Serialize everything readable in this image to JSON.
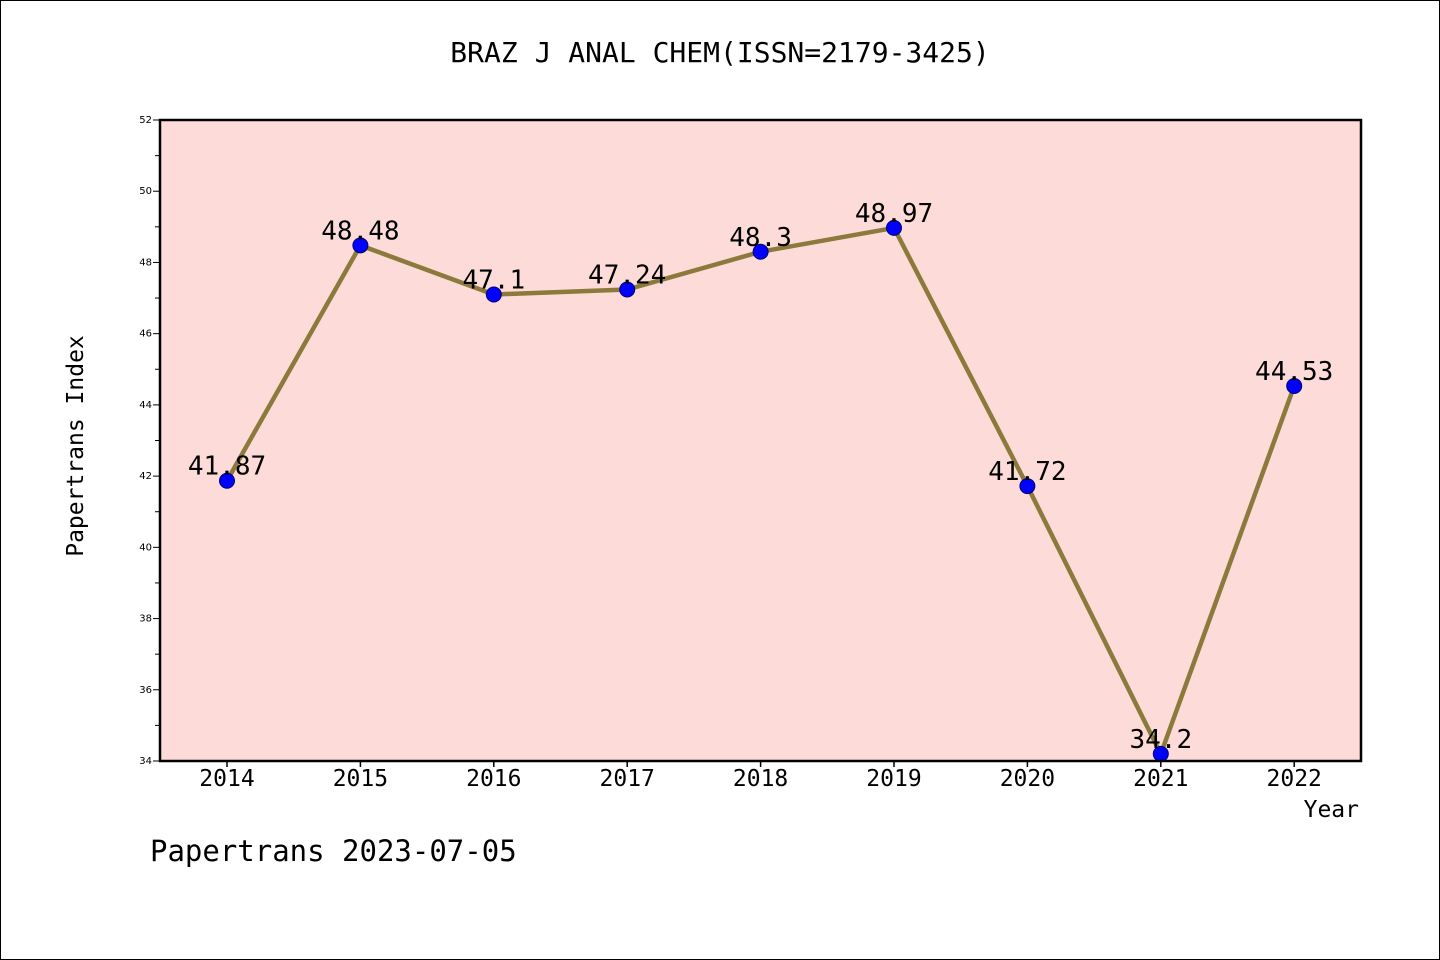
{
  "chart_data": {
    "type": "line",
    "title": "BRAZ J ANAL CHEM(ISSN=2179-3425)",
    "xlabel": "Year",
    "ylabel": "Papertrans Index",
    "categories": [
      "2014",
      "2015",
      "2016",
      "2017",
      "2018",
      "2019",
      "2020",
      "2021",
      "2022"
    ],
    "values": [
      41.87,
      48.48,
      47.1,
      47.24,
      48.3,
      48.97,
      41.72,
      34.2,
      44.53
    ],
    "data_labels": [
      "41.87",
      "48.48",
      "47.1",
      "47.24",
      "48.3",
      "48.97",
      "41.72",
      "34.2",
      "44.53"
    ],
    "ylim": [
      34,
      52
    ],
    "y_ticks": [
      34,
      36,
      38,
      40,
      42,
      44,
      46,
      48,
      50,
      52
    ],
    "grid": false,
    "colors": {
      "plot_background": "#fddbd8",
      "line": "#8b7a3c",
      "marker": "#0000ff",
      "frame": "#000000"
    }
  },
  "footer": {
    "note": "Papertrans 2023-07-05"
  }
}
